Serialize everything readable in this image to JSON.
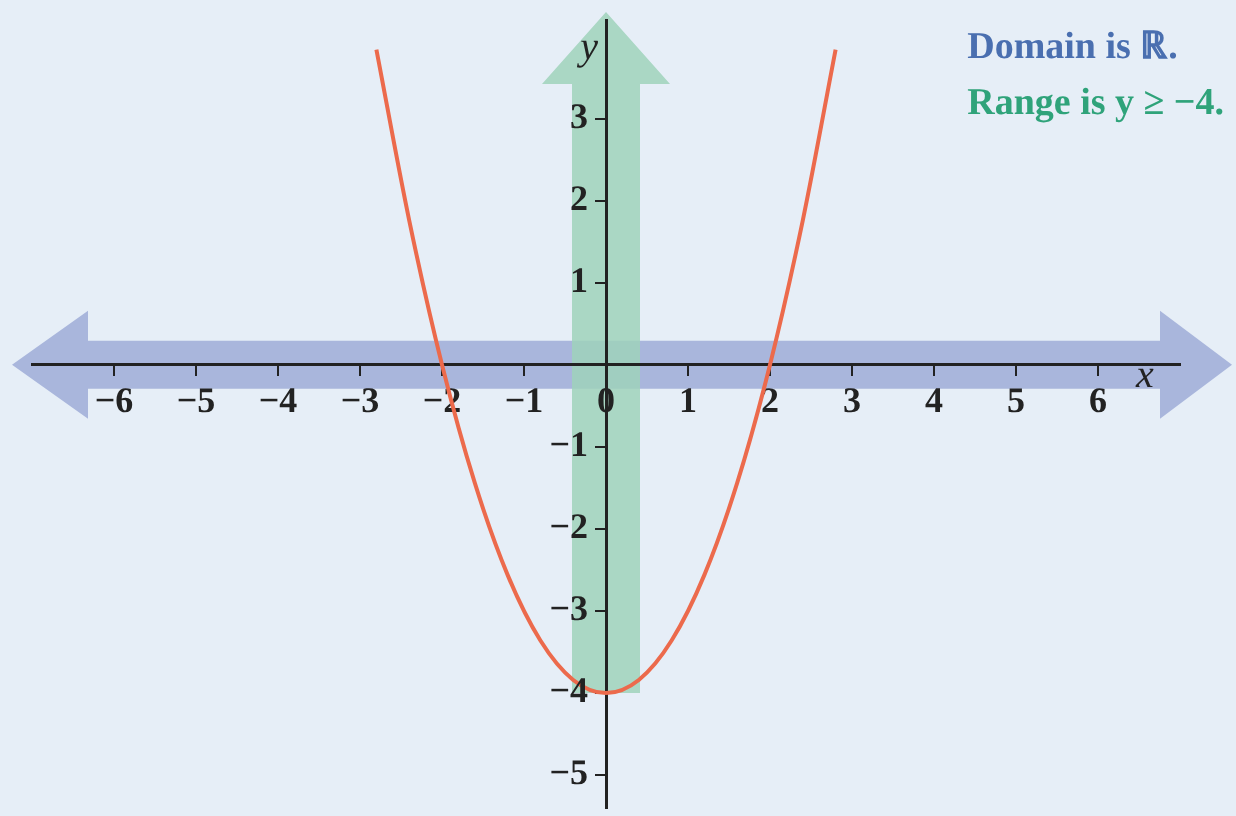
{
  "chart_data": {
    "type": "line",
    "xlabel": "x",
    "ylabel": "y",
    "series": [
      {
        "color": "#ec6a4c",
        "x": [
          -2.8,
          -2.4,
          -2,
          -1.6,
          -1.2,
          -0.8,
          -0.4,
          0,
          0.4,
          0.8,
          1.2,
          1.6,
          2,
          2.4,
          2.8
        ],
        "values": [
          3.84,
          1.76,
          0,
          -1.44,
          -2.56,
          -3.36,
          -3.84,
          -4,
          -3.84,
          -3.36,
          -2.56,
          -1.44,
          0,
          1.76,
          3.84
        ]
      }
    ],
    "xlim": [
      -7,
      7
    ],
    "ylim": [
      -5.4,
      4.2
    ],
    "xticks": [
      -6,
      -5,
      -4,
      -3,
      -2,
      -1,
      0,
      1,
      2,
      3,
      4,
      5,
      6
    ],
    "yticks": [
      -5,
      -4,
      -3,
      -2,
      -1,
      1,
      2,
      3
    ],
    "annotations": [
      "Domain is ℝ.",
      "Range is y ≥ −4."
    ]
  }
}
